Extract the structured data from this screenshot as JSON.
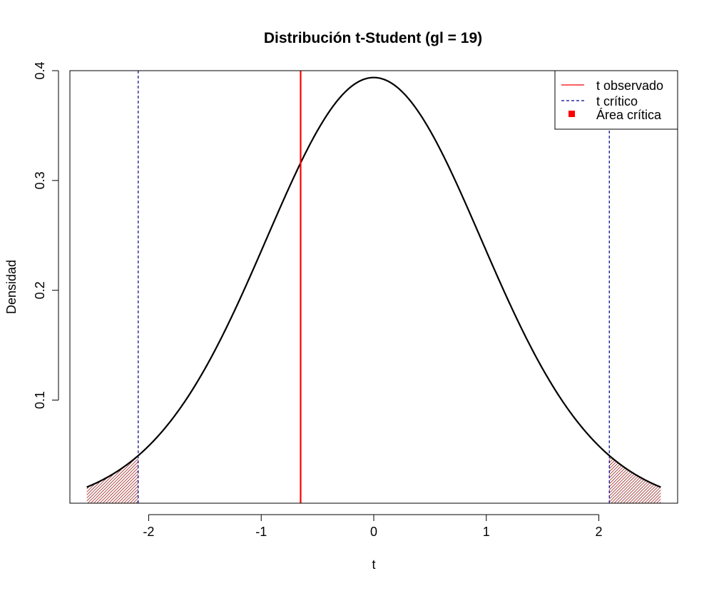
{
  "chart_data": {
    "type": "line",
    "title": "Distribución t-Student (gl = 19)",
    "xlabel": "t",
    "ylabel": "Densidad",
    "df": 19,
    "x_range": [
      -2.55,
      2.55
    ],
    "xlim": [
      -2.7,
      2.7
    ],
    "ylim": [
      0.0061,
      0.4
    ],
    "x_ticks": [
      -2,
      -1,
      0,
      1,
      2
    ],
    "x_tick_labels": [
      "-2",
      "-1",
      "0",
      "1",
      "2"
    ],
    "y_ticks": [
      0.1,
      0.2,
      0.3,
      0.4
    ],
    "y_tick_labels": [
      "0.1",
      "0.2",
      "0.3",
      "0.4"
    ],
    "t_observed": -0.65,
    "t_critical": [
      -2.093,
      2.093
    ],
    "series": [
      {
        "name": "t observado",
        "color": "#ff0000",
        "style": "solid",
        "kind": "vline"
      },
      {
        "name": "t crítico",
        "color": "#00008b",
        "style": "dashed",
        "kind": "vline"
      },
      {
        "name": "Área crítica",
        "color": "#ff0000",
        "style": "hatch",
        "kind": "area"
      }
    ],
    "curve_color": "#000000",
    "hatch_color": "#8b0000",
    "legend_position": "top-right",
    "grid": false
  }
}
